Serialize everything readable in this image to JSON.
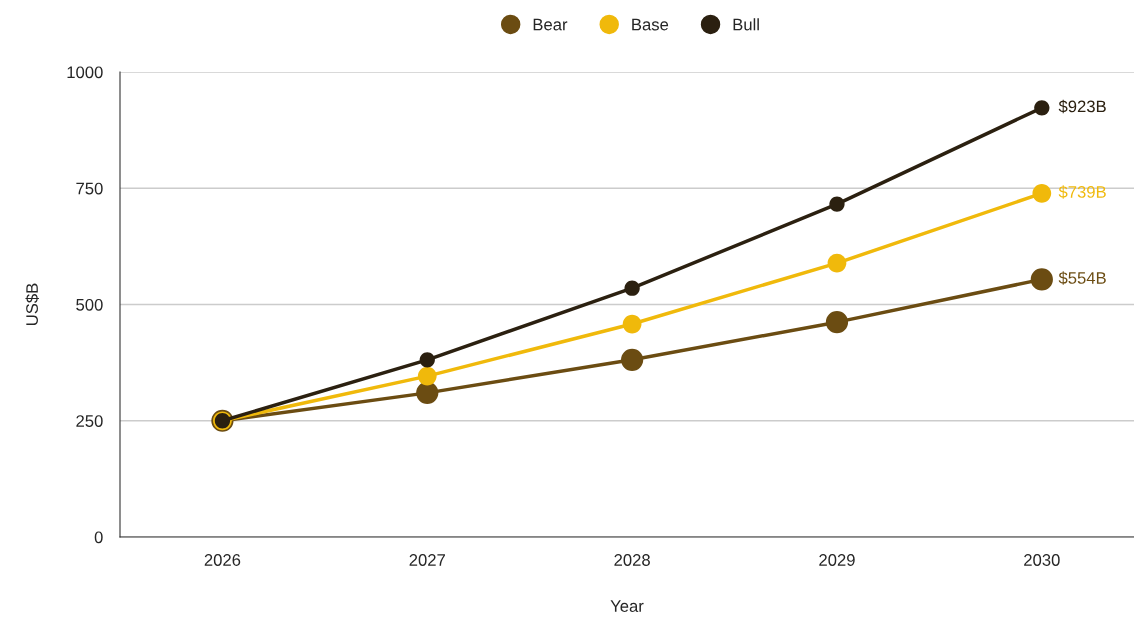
{
  "chart_data": {
    "type": "line",
    "xlabel": "Year",
    "ylabel": "US$B",
    "categories": [
      "2026",
      "2027",
      "2028",
      "2029",
      "2030"
    ],
    "series": [
      {
        "name": "Bear",
        "color": "#6b4c12",
        "values": [
          250,
          310,
          381,
          462,
          554
        ],
        "value_labels": [
          null,
          null,
          null,
          null,
          "$554B"
        ]
      },
      {
        "name": "Base",
        "color": "#f0b90b",
        "values": [
          250,
          346,
          458,
          589,
          739
        ],
        "value_labels": [
          null,
          null,
          null,
          null,
          "$739B"
        ]
      },
      {
        "name": "Bull",
        "color": "#2b2010",
        "values": [
          250,
          381,
          535,
          716,
          923
        ],
        "value_labels": [
          null,
          null,
          null,
          null,
          "$923B"
        ]
      }
    ],
    "ylim": [
      0,
      1000
    ],
    "yticks": [
      0,
      250,
      500,
      750,
      1000
    ],
    "grid": "y",
    "legend": "top",
    "marker": "circle",
    "line_style": "solid"
  }
}
